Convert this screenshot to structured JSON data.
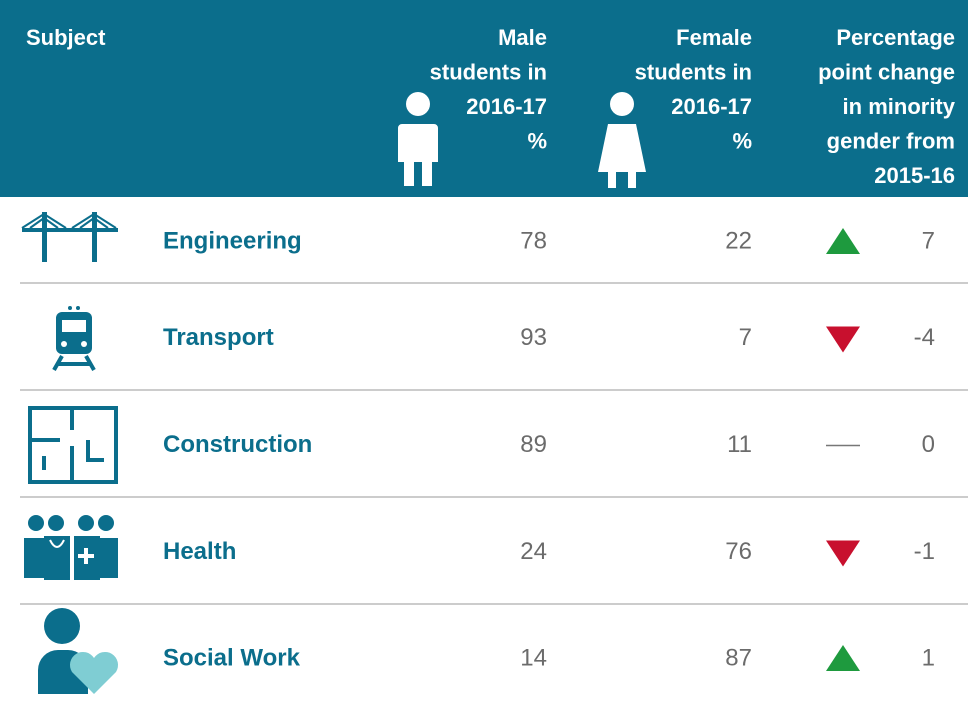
{
  "table": {
    "header": {
      "subject": [
        "Subject"
      ],
      "male": [
        "Male",
        "students in",
        "2016-17",
        "%"
      ],
      "female": [
        "Female",
        "students in",
        "2016-17",
        "%"
      ],
      "change": [
        "Percentage",
        "point change",
        "in minority",
        "gender from",
        "2015-16"
      ]
    },
    "rows": [
      {
        "subject": "Engineering",
        "male": 78,
        "female": 22,
        "change": 7
      },
      {
        "subject": "Transport",
        "male": 93,
        "female": 7,
        "change": -4
      },
      {
        "subject": "Construction",
        "male": 89,
        "female": 11,
        "change": 0
      },
      {
        "subject": "Health",
        "male": 24,
        "female": 76,
        "change": -1
      },
      {
        "subject": "Social Work",
        "male": 14,
        "female": 87,
        "change": 1
      }
    ]
  }
}
